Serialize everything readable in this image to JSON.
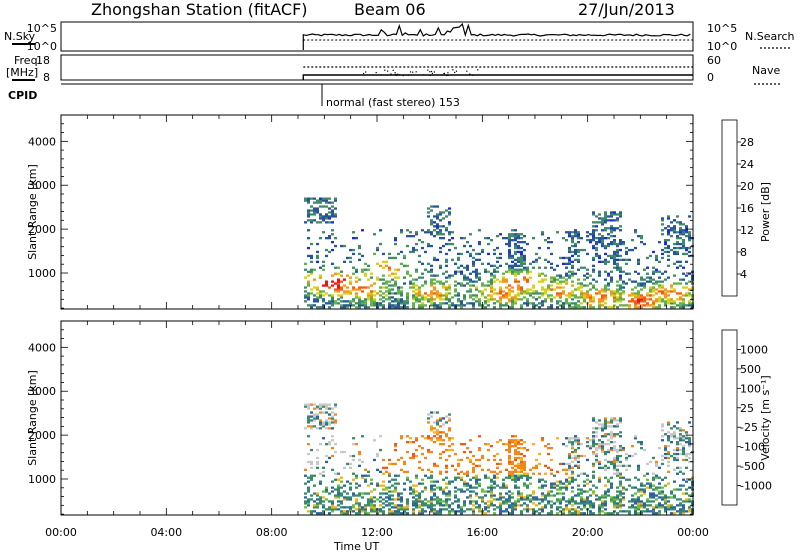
{
  "header": {
    "station": "Zhongshan Station (fitACF)",
    "beam": "Beam 06",
    "date": "27/Jun/2013"
  },
  "panels": {
    "nsky": {
      "label": "N.Sky",
      "ticks": [
        "10^5",
        "10^0"
      ],
      "right_label": "N.Search",
      "right_ticks": [
        "10^5",
        "10^0"
      ]
    },
    "freq": {
      "label_line1": "Freq.",
      "label_line2": "[MHz]",
      "ticks": [
        "18",
        "8"
      ],
      "right_label": "Nave",
      "right_ticks": [
        "60",
        "0"
      ]
    },
    "cpid": {
      "label": "CPID",
      "mode_text": "normal (fast stereo) 153"
    }
  },
  "chart_data": [
    {
      "type": "heatmap",
      "panel": "power",
      "ylabel": "Slant Range [km]",
      "xlabel": "Time UT",
      "x_ticks": [
        "00:00",
        "04:00",
        "08:00",
        "12:00",
        "16:00",
        "20:00",
        "00:00"
      ],
      "y_ticks": [
        1000,
        2000,
        3000,
        4000
      ],
      "ylim": [
        180,
        4600
      ],
      "data_start": "09:12",
      "colorbar": {
        "label": "Power [dB]",
        "ticks": [
          "4",
          "8",
          "12",
          "16",
          "20",
          "24",
          "28"
        ]
      },
      "colors": [
        "#1f2bd6",
        "#28559a",
        "#3f8a6a",
        "#66b24a",
        "#d8d11c",
        "#f7941d",
        "#f25c14",
        "#e4161b"
      ]
    },
    {
      "type": "heatmap",
      "panel": "velocity",
      "ylabel": "Slant Range [km]",
      "xlabel": "Time UT",
      "x_ticks": [
        "00:00",
        "04:00",
        "08:00",
        "12:00",
        "16:00",
        "20:00",
        "00:00"
      ],
      "y_ticks": [
        1000,
        2000,
        3000,
        4000
      ],
      "ylim": [
        180,
        4600
      ],
      "data_start": "09:12",
      "colorbar": {
        "label": "Velocity [m s⁻¹]",
        "ticks": [
          "1000",
          "500",
          "100",
          "25",
          "-25",
          "-100",
          "-500",
          "-1000"
        ]
      },
      "colors": [
        "#1a3fb5",
        "#2c64a0",
        "#3a8b6a",
        "#6dc03a",
        "#c8c8c8",
        "#f7b21b",
        "#f2871c",
        "#ee5a1a",
        "#e41a1a"
      ]
    }
  ]
}
